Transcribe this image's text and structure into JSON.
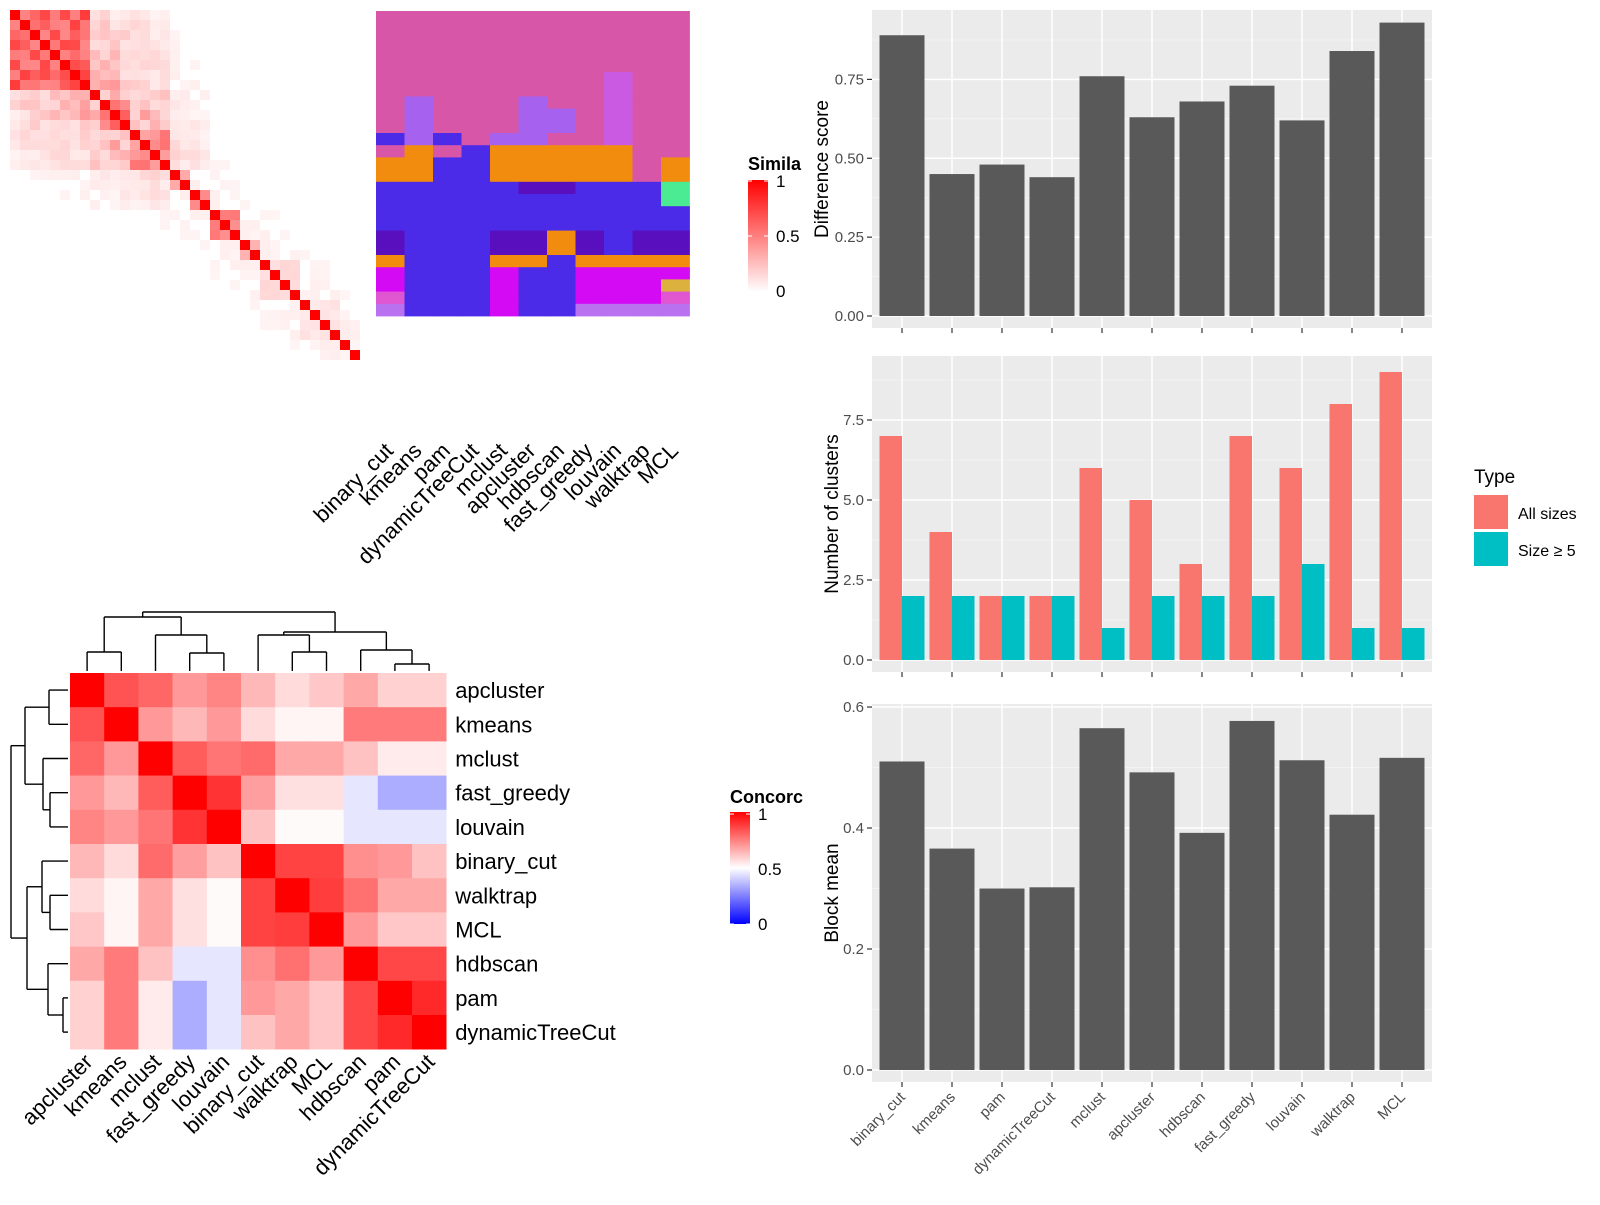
{
  "simMatrix": {
    "n": 35,
    "matrix_color": "#ff0000",
    "legend": {
      "title": "Simila",
      "ticks": [
        "1",
        "0.5",
        "0"
      ]
    }
  },
  "methodLabels": [
    "binary_cut",
    "kmeans",
    "pam",
    "dynamicTreeCut",
    "mclust",
    "apcluster",
    "hdbscan",
    "fast_greedy",
    "louvain",
    "walktrap",
    "MCL"
  ],
  "clusterGrid": {
    "palette": {
      "A": "#d856a8",
      "B": "#a661ee",
      "C": "#4b2be8",
      "D": "#f28c0f",
      "E": "#5a0fbe",
      "F": "#d40af5",
      "G": "#ca5ae2",
      "H": "#4beb94",
      "I": "#ddb13e",
      "J": "#ba71f0",
      "K": "#e055d0"
    },
    "rows": [
      {
        "len": 5,
        "cells": "AAAAAAAAAAA"
      },
      {
        "len": 2,
        "cells": "AAAAAAAAGAA"
      },
      {
        "len": 1,
        "cells": "ABAAABAAGAA"
      },
      {
        "len": 1,
        "cells": "ABAAABBAGAA"
      },
      {
        "len": 1,
        "cells": "ABAAABBAGAA"
      },
      {
        "len": 1,
        "cells": "CBCABBAAGAA"
      },
      {
        "len": 1,
        "cells": "ADACDDDDDAA"
      },
      {
        "len": 2,
        "cells": "DDCCDDDDDAD"
      },
      {
        "len": 1,
        "cells": "CCCCCEECCCH"
      },
      {
        "len": 1,
        "cells": "CCCCCCCCCCH"
      },
      {
        "len": 1,
        "cells": "CCCCCCCCCCC"
      },
      {
        "len": 1,
        "cells": "CCCCCCCCCCC"
      },
      {
        "len": 2,
        "cells": "ECCCEEDECEE"
      },
      {
        "len": 1,
        "cells": "DCCCDDCDDDD"
      },
      {
        "len": 1,
        "cells": "FCCCFCCFFFF"
      },
      {
        "len": 1,
        "cells": "FCCCFCCFFFI"
      },
      {
        "len": 1,
        "cells": "KCCCFCCFFFK"
      },
      {
        "len": 1,
        "cells": "JCCCFCCJJJJ"
      }
    ]
  },
  "concordance": {
    "labels": [
      "apcluster",
      "kmeans",
      "mclust",
      "fast_greedy",
      "louvain",
      "binary_cut",
      "walktrap",
      "MCL",
      "hdbscan",
      "pam",
      "dynamicTreeCut"
    ],
    "matrix": [
      [
        1.0,
        0.84,
        0.8,
        0.7,
        0.74,
        0.64,
        0.57,
        0.61,
        0.67,
        0.59,
        0.59
      ],
      [
        0.84,
        1.0,
        0.7,
        0.64,
        0.7,
        0.57,
        0.52,
        0.52,
        0.76,
        0.76,
        0.76
      ],
      [
        0.8,
        0.7,
        1.0,
        0.82,
        0.77,
        0.79,
        0.67,
        0.67,
        0.62,
        0.54,
        0.54
      ],
      [
        0.7,
        0.64,
        0.82,
        1.0,
        0.9,
        0.69,
        0.56,
        0.56,
        0.45,
        0.34,
        0.34
      ],
      [
        0.74,
        0.7,
        0.77,
        0.9,
        1.0,
        0.62,
        0.51,
        0.51,
        0.45,
        0.45,
        0.45
      ],
      [
        0.64,
        0.57,
        0.79,
        0.69,
        0.62,
        1.0,
        0.87,
        0.87,
        0.72,
        0.7,
        0.62
      ],
      [
        0.57,
        0.52,
        0.67,
        0.56,
        0.51,
        0.87,
        1.0,
        0.88,
        0.78,
        0.67,
        0.67
      ],
      [
        0.61,
        0.52,
        0.67,
        0.56,
        0.51,
        0.87,
        0.88,
        1.0,
        0.7,
        0.61,
        0.61
      ],
      [
        0.67,
        0.76,
        0.62,
        0.45,
        0.45,
        0.72,
        0.78,
        0.7,
        1.0,
        0.86,
        0.86
      ],
      [
        0.59,
        0.76,
        0.54,
        0.34,
        0.45,
        0.7,
        0.67,
        0.61,
        0.86,
        1.0,
        0.92
      ],
      [
        0.59,
        0.76,
        0.54,
        0.34,
        0.45,
        0.62,
        0.67,
        0.61,
        0.86,
        0.92,
        1.0
      ]
    ],
    "legend": {
      "title": "Concorc",
      "ticks": [
        "1",
        "0.5",
        "0"
      ]
    },
    "colors": {
      "low": "#0000ff",
      "mid": "#ffffff",
      "high": "#ff0000"
    }
  },
  "chart_data": [
    {
      "type": "bar",
      "categories": [
        "binary_cut",
        "kmeans",
        "pam",
        "dynamicTreeCut",
        "mclust",
        "apcluster",
        "hdbscan",
        "fast_greedy",
        "louvain",
        "walktrap",
        "MCL"
      ],
      "values": [
        0.89,
        0.45,
        0.48,
        0.44,
        0.76,
        0.63,
        0.68,
        0.73,
        0.62,
        0.84,
        0.93
      ],
      "ylabel": "Difference score",
      "ylim": [
        0,
        0.97
      ],
      "yticks": [
        0,
        0.25,
        0.5,
        0.75
      ],
      "ytick_labels": [
        "0.00",
        "0.25",
        "0.50",
        "0.75"
      ],
      "bar_color": "#595959",
      "grid": true
    },
    {
      "type": "bar",
      "categories": [
        "binary_cut",
        "kmeans",
        "pam",
        "dynamicTreeCut",
        "mclust",
        "apcluster",
        "hdbscan",
        "fast_greedy",
        "louvain",
        "walktrap",
        "MCL"
      ],
      "series": [
        {
          "name": "All sizes",
          "color": "#f8766d",
          "values": [
            7,
            4,
            2,
            2,
            6,
            5,
            3,
            7,
            6,
            8,
            9
          ]
        },
        {
          "name": "Size ≥ 5",
          "color": "#00bfc4",
          "values": [
            2,
            2,
            2,
            2,
            1,
            2,
            2,
            2,
            3,
            1,
            1
          ]
        }
      ],
      "ylabel": "Number of clusters",
      "ylim": [
        0,
        9.5
      ],
      "yticks": [
        0,
        2.5,
        5,
        7.5
      ],
      "ytick_labels": [
        "0.0",
        "2.5",
        "5.0",
        "7.5"
      ],
      "legend": {
        "title": "Type",
        "position": "right"
      },
      "grid": true
    },
    {
      "type": "bar",
      "categories": [
        "binary_cut",
        "kmeans",
        "pam",
        "dynamicTreeCut",
        "mclust",
        "apcluster",
        "hdbscan",
        "fast_greedy",
        "louvain",
        "walktrap",
        "MCL"
      ],
      "values": [
        0.51,
        0.366,
        0.3,
        0.302,
        0.565,
        0.492,
        0.392,
        0.577,
        0.512,
        0.422,
        0.516
      ],
      "ylabel": "Block mean",
      "ylim": [
        0,
        0.605
      ],
      "yticks": [
        0,
        0.2,
        0.4,
        0.6
      ],
      "ytick_labels": [
        "0.0",
        "0.2",
        "0.4",
        "0.6"
      ],
      "bar_color": "#595959",
      "grid": true
    }
  ]
}
